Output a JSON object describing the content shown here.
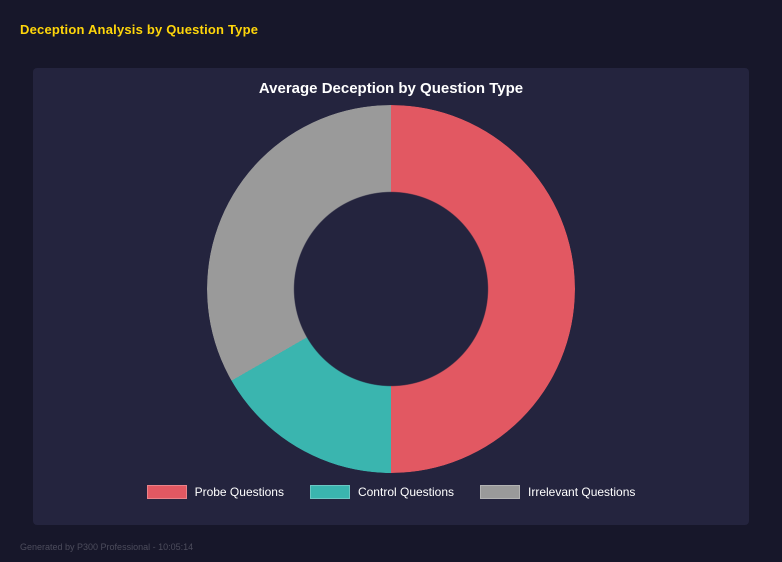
{
  "page": {
    "title": "Deception Analysis by Question Type",
    "footer": "Generated by P300 Professional - 10:05:14"
  },
  "chart_data": {
    "type": "pie",
    "subtype": "donut",
    "title": "Average Deception by Question Type",
    "categories": [
      "Probe Questions",
      "Control Questions",
      "Irrelevant Questions"
    ],
    "values": [
      50.0,
      16.7,
      33.3
    ],
    "unit": "percent_of_total",
    "colors": [
      "#e25862",
      "#3ab5af",
      "#9a9a9a"
    ],
    "start_angle_deg": 0,
    "direction": "clockwise",
    "cutout_percent": 53,
    "legend_position": "bottom",
    "background_panel_color": "#24243e",
    "page_background_color": "#17172a",
    "title_color": "#ffffff",
    "accent_title_color": "#ffd60a"
  }
}
